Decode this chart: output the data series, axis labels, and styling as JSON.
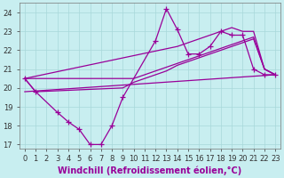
{
  "xlabel": "Windchill (Refroidissement éolien,°C)",
  "bg_color": "#c8eef0",
  "grid_color": "#a8d8da",
  "line_color": "#990099",
  "ylim": [
    16.8,
    24.5
  ],
  "xlim": [
    -0.5,
    23.5
  ],
  "yticks": [
    17,
    18,
    19,
    20,
    21,
    22,
    23,
    24
  ],
  "xticks": [
    0,
    1,
    2,
    3,
    4,
    5,
    6,
    7,
    8,
    9,
    10,
    11,
    12,
    13,
    14,
    15,
    16,
    17,
    18,
    19,
    20,
    21,
    22,
    23
  ],
  "tick_fontsize": 6,
  "xlabel_fontsize": 7,
  "series_main": {
    "x": [
      0,
      1,
      3,
      4,
      5,
      6,
      7,
      8,
      9,
      12,
      13,
      14,
      15,
      16,
      17,
      18,
      19,
      20,
      21,
      22,
      23
    ],
    "y": [
      20.5,
      19.8,
      18.7,
      18.2,
      17.8,
      17.0,
      17.0,
      18.0,
      19.5,
      22.5,
      24.2,
      23.1,
      21.8,
      21.8,
      22.2,
      23.0,
      22.8,
      22.8,
      21.0,
      20.7,
      20.7
    ]
  },
  "series_low_flat": {
    "x": [
      0,
      23
    ],
    "y": [
      19.8,
      20.7
    ]
  },
  "series_mid1": {
    "x": [
      0,
      1,
      9,
      10,
      11,
      12,
      13,
      14,
      15,
      16,
      17,
      18,
      19,
      20,
      21,
      22,
      23
    ],
    "y": [
      20.5,
      19.8,
      20.0,
      20.3,
      20.5,
      20.7,
      20.9,
      21.2,
      21.4,
      21.6,
      21.8,
      22.0,
      22.2,
      22.4,
      22.6,
      21.0,
      20.7
    ]
  },
  "series_mid2": {
    "x": [
      0,
      10,
      11,
      12,
      13,
      14,
      15,
      16,
      17,
      18,
      19,
      20,
      21,
      22,
      23
    ],
    "y": [
      20.5,
      20.5,
      20.7,
      20.9,
      21.1,
      21.3,
      21.5,
      21.7,
      21.9,
      22.1,
      22.3,
      22.5,
      22.7,
      21.0,
      20.7
    ]
  },
  "series_top": {
    "x": [
      0,
      14,
      15,
      16,
      17,
      18,
      19,
      20,
      21,
      22,
      23
    ],
    "y": [
      20.5,
      22.2,
      22.4,
      22.6,
      22.8,
      23.0,
      23.2,
      23.0,
      23.0,
      21.0,
      20.7
    ]
  }
}
